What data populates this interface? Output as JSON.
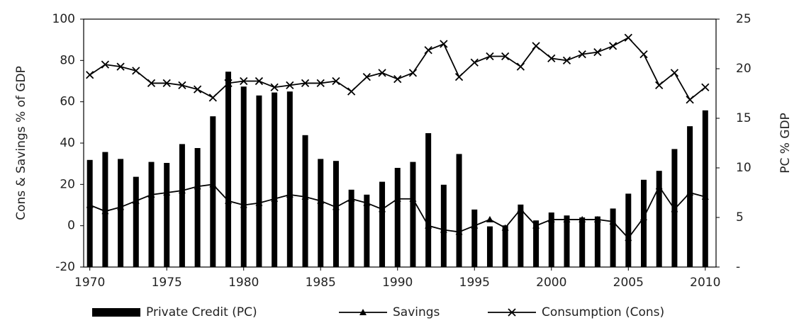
{
  "chart_data": {
    "type": "bar-line",
    "y_label": "Cons & Savings % of GDP",
    "y2_label": "PC % GDP",
    "x": [
      1970,
      1971,
      1972,
      1973,
      1974,
      1975,
      1976,
      1977,
      1978,
      1979,
      1980,
      1981,
      1982,
      1983,
      1984,
      1985,
      1986,
      1987,
      1988,
      1989,
      1990,
      1991,
      1992,
      1993,
      1994,
      1995,
      1996,
      1997,
      1998,
      1999,
      2000,
      2001,
      2002,
      2003,
      2004,
      2005,
      2006,
      2007,
      2008,
      2009,
      2010
    ],
    "xlim": [
      1969.6,
      2010.7
    ],
    "xticks": [
      1970,
      1975,
      1980,
      1985,
      1990,
      1995,
      2000,
      2005,
      2010
    ],
    "ylim": [
      -20,
      100
    ],
    "yticks": [
      -20,
      0,
      20,
      40,
      60,
      80,
      100
    ],
    "y2lim": [
      0,
      25
    ],
    "y2ticks": [
      {
        "value": 0,
        "label": "-"
      },
      5,
      10,
      15,
      20,
      25
    ],
    "series": [
      {
        "name": "Private Credit (PC)",
        "type": "bar",
        "axis": "y2",
        "color": "#000000",
        "values": [
          10.8,
          11.6,
          10.9,
          9.1,
          10.6,
          10.5,
          12.4,
          12.0,
          15.2,
          19.7,
          18.2,
          17.3,
          17.6,
          17.7,
          13.3,
          10.9,
          10.7,
          7.8,
          7.3,
          8.6,
          10.0,
          10.6,
          13.5,
          8.3,
          11.4,
          5.8,
          4.1,
          4.2,
          6.3,
          4.7,
          5.5,
          5.2,
          5.0,
          5.1,
          5.9,
          7.4,
          8.8,
          9.7,
          11.9,
          14.2,
          15.8
        ]
      },
      {
        "name": "Savings",
        "type": "line",
        "marker": "triangle",
        "color": "#000000",
        "values": [
          10,
          7,
          9,
          12,
          15,
          16,
          17,
          19,
          20,
          12,
          10,
          11,
          13,
          15,
          14,
          12,
          9,
          13,
          11,
          8,
          13,
          13,
          0,
          -2,
          -3,
          0,
          3,
          -1,
          8,
          0,
          3,
          3,
          3,
          3,
          2,
          -6,
          4,
          19,
          8,
          16,
          14
        ]
      },
      {
        "name": "Consumption (Cons)",
        "type": "line",
        "marker": "x",
        "color": "#000000",
        "values": [
          73,
          78,
          77,
          75,
          69,
          69,
          68,
          66,
          62,
          69,
          70,
          70,
          67,
          68,
          69,
          69,
          70,
          65,
          72,
          74,
          71,
          74,
          85,
          88,
          72,
          79,
          82,
          82,
          77,
          87,
          81,
          80,
          83,
          84,
          87,
          91,
          83,
          68,
          74,
          61,
          67
        ]
      }
    ]
  }
}
